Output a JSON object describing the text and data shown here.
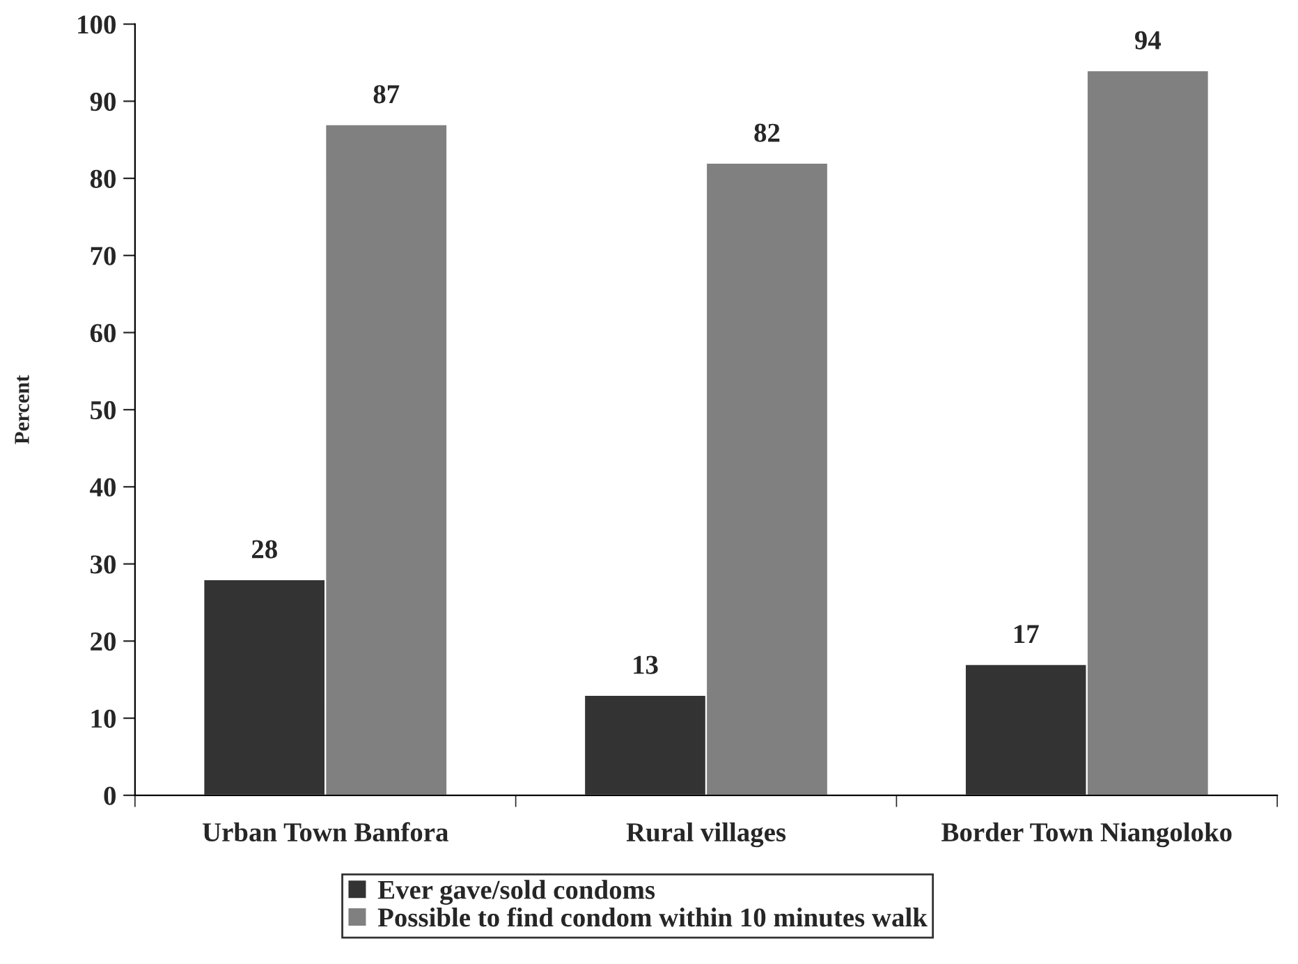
{
  "chart_data": {
    "type": "bar",
    "ylabel": "Percent",
    "categories": [
      "Urban Town Banfora",
      "Rural villages",
      "Border Town Niangoloko"
    ],
    "series": [
      {
        "name": "Ever gave/sold condoms",
        "color": "#333333",
        "values": [
          28,
          13,
          17
        ]
      },
      {
        "name": "Possible to find condom within 10 minutes walk",
        "color": "#808080",
        "values": [
          87,
          82,
          94
        ]
      }
    ],
    "ylim": [
      0,
      100
    ],
    "yticks": [
      0,
      10,
      20,
      30,
      40,
      50,
      60,
      70,
      80,
      90,
      100
    ],
    "data_labels": true,
    "grid": false,
    "legend": "bottom"
  }
}
